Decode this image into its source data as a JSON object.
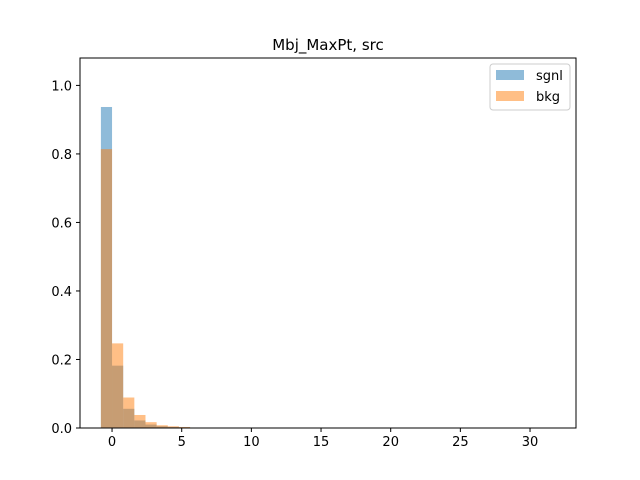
{
  "chart_data": {
    "type": "bar",
    "title": "Mbj_MaxPt, src",
    "xlabel": "",
    "ylabel": "",
    "xlim": [
      -2.3,
      33.3
    ],
    "ylim": [
      0,
      1.08
    ],
    "x_ticks": [
      0,
      5,
      10,
      15,
      20,
      25,
      30
    ],
    "y_ticks": [
      0.0,
      0.2,
      0.4,
      0.6,
      0.8,
      1.0
    ],
    "bin_edges": [
      -0.8,
      0.0,
      0.8,
      1.6,
      2.4,
      3.2,
      4.0,
      4.8,
      5.6,
      6.4
    ],
    "legend_position": "top-right",
    "grid": false,
    "series": [
      {
        "name": "sgnl",
        "color": "#1f77b4",
        "alpha": 0.5,
        "values": [
          0.937,
          0.182,
          0.056,
          0.022,
          0.01,
          0.005,
          0.003,
          0.002,
          0.001
        ]
      },
      {
        "name": "bkg",
        "color": "#ff7f0e",
        "alpha": 0.5,
        "values": [
          0.814,
          0.247,
          0.089,
          0.038,
          0.017,
          0.008,
          0.005,
          0.003,
          0.001
        ]
      }
    ]
  }
}
